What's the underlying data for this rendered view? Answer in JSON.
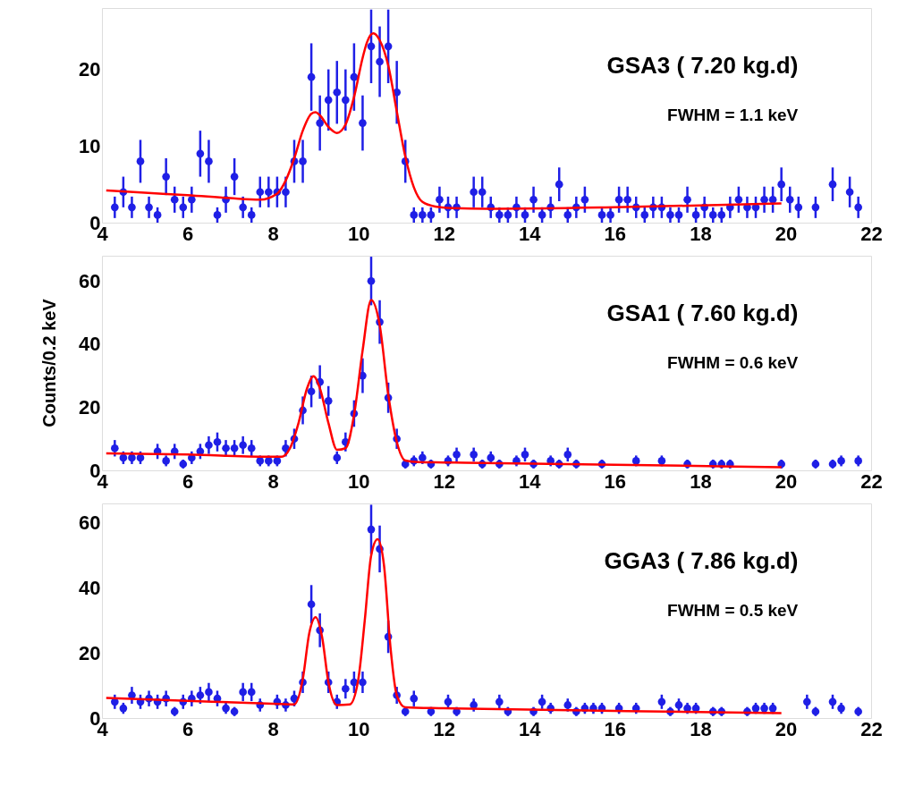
{
  "chart_data": [
    {
      "type": "scatter",
      "xlim": [
        4,
        22
      ],
      "xticks": [
        4,
        6,
        8,
        10,
        12,
        14,
        16,
        18,
        20,
        22
      ],
      "ylim": [
        0,
        28
      ],
      "yticks": [
        0,
        10,
        20
      ],
      "grid": false,
      "annotations": [
        "GSA3 ( 7.20 kg.d)",
        "FWHM =   1.1 keV"
      ],
      "series": [
        {
          "marker": "circle",
          "color": "#1f1fe6",
          "x": [
            4.3,
            4.5,
            4.7,
            4.9,
            5.1,
            5.3,
            5.5,
            5.7,
            5.9,
            6.1,
            6.3,
            6.5,
            6.7,
            6.9,
            7.1,
            7.3,
            7.5,
            7.7,
            7.9,
            8.1,
            8.3,
            8.5,
            8.7,
            8.9,
            9.1,
            9.3,
            9.5,
            9.7,
            9.9,
            10.1,
            10.3,
            10.5,
            10.7,
            10.9,
            11.1,
            11.3,
            11.5,
            11.7,
            11.9,
            12.1,
            12.3,
            12.7,
            12.9,
            13.1,
            13.3,
            13.5,
            13.7,
            13.9,
            14.1,
            14.3,
            14.5,
            14.7,
            14.9,
            15.1,
            15.3,
            15.7,
            15.9,
            16.1,
            16.3,
            16.5,
            16.7,
            16.9,
            17.1,
            17.3,
            17.5,
            17.7,
            17.9,
            18.1,
            18.3,
            18.5,
            18.7,
            18.9,
            19.1,
            19.3,
            19.5,
            19.7,
            19.9,
            20.1,
            20.3,
            20.7,
            21.1,
            21.5,
            21.7
          ],
          "values": [
            2,
            4,
            2,
            8,
            2,
            1,
            6,
            3,
            2,
            3,
            9,
            8,
            1,
            3,
            6,
            2,
            1,
            4,
            4,
            4,
            4,
            8,
            8,
            19,
            13,
            16,
            17,
            16,
            19,
            13,
            23,
            21,
            23,
            17,
            8,
            1,
            1,
            1,
            3,
            2,
            2,
            4,
            4,
            2,
            1,
            1,
            2,
            1,
            3,
            1,
            2,
            5,
            1,
            2,
            3,
            1,
            1,
            3,
            3,
            2,
            1,
            2,
            2,
            1,
            1,
            3,
            1,
            2,
            1,
            1,
            2,
            3,
            2,
            2,
            3,
            3,
            5,
            3,
            2,
            2,
            5,
            4,
            2
          ],
          "errors": [
            1.4,
            2,
            1.4,
            2.8,
            1.4,
            1,
            2.4,
            1.7,
            1.4,
            1.7,
            3,
            2.8,
            1,
            1.7,
            2.4,
            1.4,
            1,
            2,
            2,
            2,
            2,
            2.8,
            2.8,
            4.4,
            3.6,
            4,
            4.1,
            4,
            4.4,
            3.6,
            4.8,
            4.6,
            4.8,
            4.1,
            2.8,
            1,
            1,
            1,
            1.7,
            1.4,
            1.4,
            2,
            2,
            1.4,
            1,
            1,
            1.4,
            1,
            1.7,
            1,
            1.4,
            2.2,
            1,
            1.4,
            1.7,
            1,
            1,
            1.7,
            1.7,
            1.4,
            1,
            1.4,
            1.4,
            1,
            1,
            1.7,
            1,
            1.4,
            1,
            1,
            1.4,
            1.7,
            1.4,
            1.4,
            1.7,
            1.7,
            2.2,
            1.7,
            1.4,
            1.4,
            2.2,
            2,
            1.4
          ]
        },
        {
          "type": "line",
          "color": "#ff0000",
          "x": [
            4.1,
            5,
            6,
            7,
            7.7,
            8.1,
            8.3,
            8.5,
            8.7,
            8.9,
            9.0,
            9.1,
            9.3,
            9.5,
            9.7,
            9.9,
            10.1,
            10.2,
            10.35,
            10.5,
            10.7,
            10.9,
            11.1,
            11.3,
            11.5,
            11.8,
            12.2,
            13,
            16,
            19.9
          ],
          "marker": "none",
          "values": [
            4.2,
            3.9,
            3.6,
            3.2,
            3.0,
            3.8,
            5.5,
            8.4,
            12,
            14.2,
            14.4,
            14,
            12.5,
            11.7,
            12.8,
            16.4,
            21.5,
            23.5,
            24.7,
            23.8,
            20.5,
            14.5,
            8.6,
            4.6,
            2.7,
            2.1,
            1.9,
            1.8,
            2.0,
            2.5
          ]
        }
      ]
    },
    {
      "type": "scatter",
      "xlim": [
        4,
        22
      ],
      "xticks": [
        4,
        6,
        8,
        10,
        12,
        14,
        16,
        18,
        20,
        22
      ],
      "ylim": [
        0,
        68
      ],
      "yticks": [
        0,
        20,
        40,
        60
      ],
      "grid": false,
      "ylabel": "Counts/0.2 keV",
      "annotations": [
        "GSA1 ( 7.60 kg.d)",
        "FWHM =   0.6 keV"
      ],
      "series": [
        {
          "marker": "circle",
          "color": "#1f1fe6",
          "x": [
            4.3,
            4.5,
            4.7,
            4.9,
            5.3,
            5.5,
            5.7,
            5.9,
            6.1,
            6.3,
            6.5,
            6.7,
            6.9,
            7.1,
            7.3,
            7.5,
            7.7,
            7.9,
            8.1,
            8.3,
            8.5,
            8.7,
            8.9,
            9.1,
            9.3,
            9.5,
            9.7,
            9.9,
            10.1,
            10.3,
            10.5,
            10.7,
            10.9,
            11.1,
            11.3,
            11.5,
            11.7,
            12.1,
            12.3,
            12.7,
            12.9,
            13.1,
            13.3,
            13.7,
            13.9,
            14.1,
            14.5,
            14.7,
            14.9,
            15.1,
            15.7,
            16.5,
            17.1,
            17.7,
            18.3,
            18.5,
            18.7,
            19.9,
            20.7,
            21.1,
            21.3,
            21.7
          ],
          "values": [
            7,
            4,
            4,
            4,
            6,
            3,
            6,
            2,
            4,
            6,
            8,
            9,
            7,
            7,
            8,
            7,
            3,
            3,
            3,
            7,
            10,
            19,
            25,
            28,
            22,
            4,
            9,
            18,
            30,
            60,
            47,
            23,
            10,
            2,
            3,
            4,
            2,
            3,
            5,
            5,
            2,
            4,
            2,
            3,
            5,
            2,
            3,
            2,
            5,
            2,
            2,
            3,
            3,
            2,
            2,
            2,
            2,
            2,
            2,
            2,
            3,
            3
          ],
          "errors": [
            2.6,
            2,
            2,
            2,
            2.4,
            1.7,
            2.4,
            1.4,
            2,
            2.4,
            2.8,
            3,
            2.6,
            2.6,
            2.8,
            2.6,
            1.7,
            1.7,
            1.7,
            2.6,
            3.2,
            4.4,
            5,
            5.3,
            4.7,
            2,
            3,
            4.2,
            5.5,
            7.7,
            6.9,
            4.8,
            3.2,
            1.4,
            1.7,
            2,
            1.4,
            1.7,
            2.2,
            2.2,
            1.4,
            2,
            1.4,
            1.7,
            2.2,
            1.4,
            1.7,
            1.4,
            2.2,
            1.4,
            1.4,
            1.7,
            1.7,
            1.4,
            1.4,
            1.4,
            1.4,
            1.4,
            1.4,
            1.4,
            1.7,
            1.7
          ]
        },
        {
          "type": "line",
          "color": "#ff0000",
          "x": [
            4.1,
            6,
            8.0,
            8.2,
            8.4,
            8.6,
            8.8,
            8.95,
            9.1,
            9.3,
            9.5,
            9.7,
            9.9,
            10.1,
            10.3,
            10.5,
            10.7,
            10.9,
            11.1,
            11.4,
            12,
            16,
            19.9
          ],
          "marker": "none",
          "values": [
            5.4,
            5,
            4.3,
            4.3,
            7,
            15,
            26,
            29.8,
            26,
            15,
            6.5,
            7,
            17.6,
            38,
            54,
            46,
            24,
            9,
            3.1,
            2.6,
            2.5,
            1.8,
            1.0
          ]
        }
      ]
    },
    {
      "type": "scatter",
      "xlim": [
        4,
        22
      ],
      "xticks": [
        4,
        6,
        8,
        10,
        12,
        14,
        16,
        18,
        20,
        22
      ],
      "ylim": [
        0,
        66
      ],
      "yticks": [
        0,
        20,
        40,
        60
      ],
      "grid": false,
      "annotations": [
        "GGA3 ( 7.86 kg.d)",
        "FWHM =   0.5 keV"
      ],
      "series": [
        {
          "marker": "circle",
          "color": "#1f1fe6",
          "x": [
            4.3,
            4.5,
            4.7,
            4.9,
            5.1,
            5.3,
            5.5,
            5.7,
            5.9,
            6.1,
            6.3,
            6.5,
            6.7,
            6.9,
            7.1,
            7.3,
            7.5,
            7.7,
            8.1,
            8.3,
            8.5,
            8.7,
            8.9,
            9.1,
            9.3,
            9.5,
            9.7,
            9.9,
            10.1,
            10.3,
            10.5,
            10.7,
            10.9,
            11.1,
            11.3,
            11.7,
            12.1,
            12.3,
            12.7,
            13.3,
            13.5,
            14.1,
            14.3,
            14.5,
            14.9,
            15.1,
            15.3,
            15.5,
            15.7,
            16.1,
            16.5,
            17.1,
            17.3,
            17.5,
            17.7,
            17.9,
            18.3,
            18.5,
            19.1,
            19.3,
            19.5,
            19.7,
            20.5,
            20.7,
            21.1,
            21.3,
            21.7
          ],
          "values": [
            5,
            3,
            7,
            5,
            6,
            5,
            6,
            2,
            5,
            6,
            7,
            8,
            6,
            3,
            2,
            8,
            8,
            4,
            5,
            4,
            6,
            11,
            35,
            27,
            11,
            5,
            9,
            11,
            11,
            58,
            52,
            25,
            7,
            2,
            6,
            2,
            5,
            2,
            4,
            5,
            2,
            2,
            5,
            3,
            4,
            2,
            3,
            3,
            3,
            3,
            3,
            5,
            2,
            4,
            3,
            3,
            2,
            2,
            2,
            3,
            3,
            3,
            5,
            2,
            5,
            3,
            2
          ],
          "errors": [
            2.2,
            1.7,
            2.6,
            2.2,
            2.4,
            2.2,
            2.4,
            1.4,
            2.2,
            2.4,
            2.6,
            2.8,
            2.4,
            1.7,
            1.4,
            2.8,
            2.8,
            2,
            2.2,
            2,
            2.4,
            3.3,
            5.9,
            5.2,
            3.3,
            2.2,
            3,
            3.3,
            3.3,
            7.6,
            7.2,
            5,
            2.6,
            1.4,
            2.4,
            1.4,
            2.2,
            1.4,
            2,
            2.2,
            1.4,
            1.4,
            2.2,
            1.7,
            2,
            1.4,
            1.7,
            1.7,
            1.7,
            1.7,
            1.7,
            2.2,
            1.4,
            2,
            1.7,
            1.7,
            1.4,
            1.4,
            1.4,
            1.7,
            1.7,
            1.7,
            2.2,
            1.4,
            2.2,
            1.7,
            1.4
          ]
        },
        {
          "type": "line",
          "color": "#ff0000",
          "x": [
            4.1,
            6,
            8.0,
            8.5,
            8.7,
            8.85,
            9.0,
            9.15,
            9.3,
            9.5,
            9.8,
            10.0,
            10.15,
            10.3,
            10.45,
            10.6,
            10.75,
            10.9,
            11.1,
            12,
            16,
            19.9
          ],
          "marker": "none",
          "values": [
            6.2,
            5.3,
            4.4,
            4.2,
            12,
            26,
            31,
            25,
            11,
            4,
            4.2,
            12,
            30,
            50,
            55,
            47,
            22,
            7,
            3.3,
            3.0,
            2.2,
            1.5
          ]
        }
      ]
    }
  ]
}
